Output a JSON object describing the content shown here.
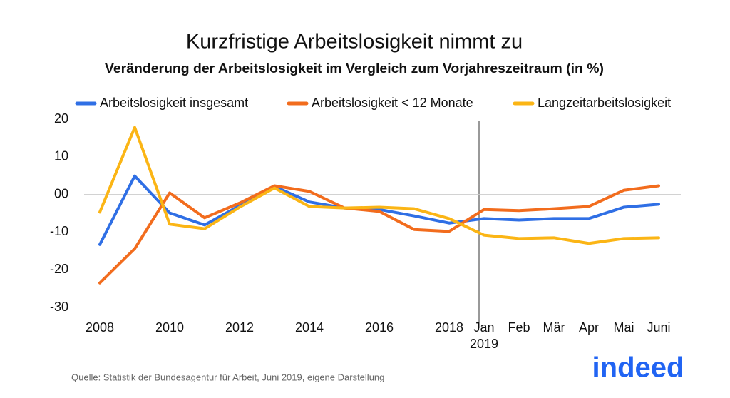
{
  "chart_data": {
    "type": "line",
    "title": "Kurzfristige Arbeitslosigkeit nimmt zu",
    "subtitle": "Veränderung der Arbeitslosigkeit im Vergleich zum Vorjahreszeitraum (in %)",
    "categories": [
      "2008",
      null,
      "2010",
      null,
      "2012",
      null,
      "2014",
      null,
      "2016",
      null,
      "2018",
      "Jan",
      "Feb",
      "Mär",
      "Apr",
      "Mai",
      "Juni"
    ],
    "x_group_label": "2019",
    "series": [
      {
        "name": "Arbeitslosigkeit insgesamt",
        "color": "#2f6fe5",
        "values": [
          -13.3,
          4.9,
          -4.9,
          -8.1,
          -3,
          2.1,
          -2,
          -3.6,
          -4,
          -5.7,
          -7.6,
          -6.4,
          -6.8,
          -6.4,
          -6.4,
          -3.4,
          -2.6
        ]
      },
      {
        "name": "Arbeitslosigkeit < 12 Monate",
        "color": "#f26c1d",
        "values": [
          -23.5,
          -14.4,
          0.4,
          -6.2,
          -2.3,
          2.3,
          0.8,
          -3.6,
          -4.5,
          -9.3,
          -9.8,
          -4,
          -4.3,
          -3.8,
          -3.2,
          1.1,
          2.3
        ]
      },
      {
        "name": "Langzeitarbeitslosigkeit",
        "color": "#fbb515",
        "values": [
          -4.7,
          17.8,
          -7.9,
          -9.1,
          -3.4,
          1.7,
          -3.2,
          -3.6,
          -3.4,
          -3.8,
          -6.4,
          -10.8,
          -11.7,
          -11.5,
          -13,
          -11.7,
          -11.5
        ]
      }
    ],
    "ylim": [
      -30,
      20
    ],
    "yticks": [
      -30,
      -20,
      -10,
      {
        "value": 0,
        "label": "00"
      },
      10,
      20
    ],
    "zero_line": true,
    "source": "Quelle: Statistik der Bundesagentur für Arbeit, Juni 2019, eigene Darstellung",
    "logo": "indeed"
  }
}
